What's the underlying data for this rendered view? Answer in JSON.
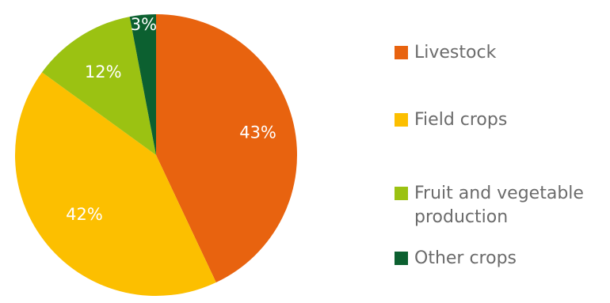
{
  "chart_data": {
    "type": "pie",
    "slices": [
      {
        "label": "Livestock",
        "value": 43,
        "display": "43%",
        "color": "#e8630f"
      },
      {
        "label": "Field crops",
        "value": 42,
        "display": "42%",
        "color": "#fcbf00"
      },
      {
        "label": "Fruit and vegetable\nproduction",
        "value": 12,
        "display": "12%",
        "color": "#9bc212"
      },
      {
        "label": "Other crops",
        "value": 3,
        "display": "3%",
        "color": "#0c6030"
      }
    ],
    "start_angle_deg": 0,
    "direction": "clockwise",
    "legend_placement": "right"
  }
}
